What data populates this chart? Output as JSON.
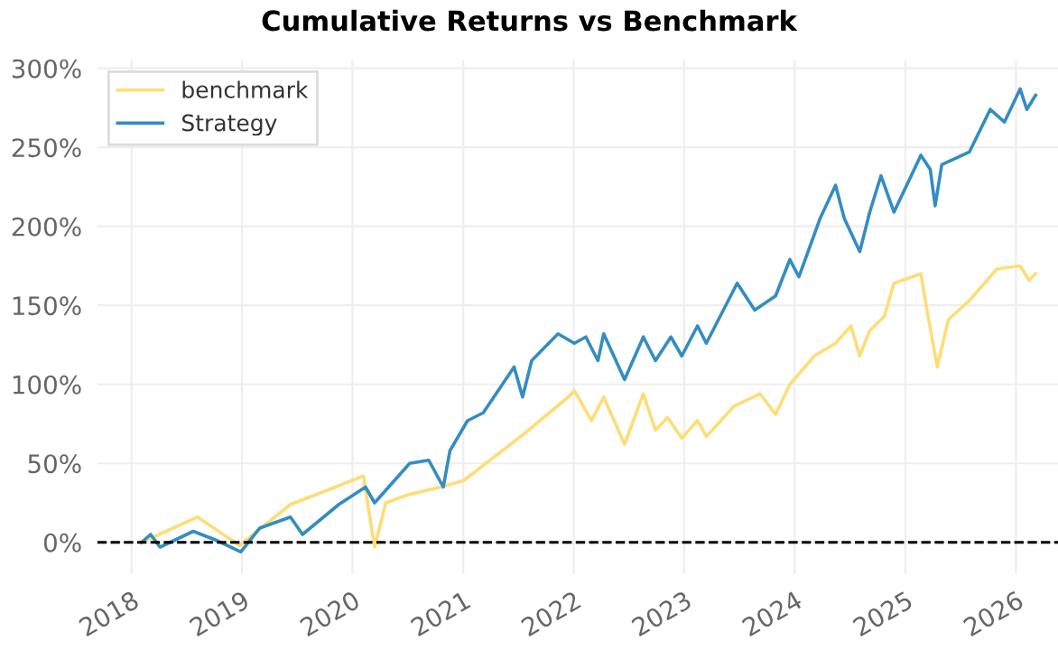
{
  "chart_data": {
    "type": "line",
    "title": "Cumulative Returns vs Benchmark",
    "series": [
      {
        "name": "benchmark",
        "color": "#fedd78",
        "x": [
          "2018-02-03",
          "2018-08-07",
          "2018-12-24",
          "2019-06-10",
          "2019-09-13",
          "2020-02-06",
          "2020-03-14",
          "2020-04-20",
          "2020-07-01",
          "2020-10-19",
          "2021-01-01",
          "2021-04-20",
          "2021-07-23",
          "2021-12-14",
          "2022-01-03",
          "2022-03-01",
          "2022-04-10",
          "2022-06-18",
          "2022-08-19",
          "2022-09-28",
          "2022-11-07",
          "2022-12-24",
          "2023-02-14",
          "2023-03-15",
          "2023-06-14",
          "2023-09-09",
          "2023-10-30",
          "2023-12-16",
          "2024-03-06",
          "2024-05-15",
          "2024-07-05",
          "2024-08-03",
          "2024-09-05",
          "2024-10-23",
          "2024-11-24",
          "2025-02-21",
          "2025-03-15",
          "2025-04-16",
          "2025-05-23",
          "2025-07-31",
          "2025-10-30",
          "2026-01-15",
          "2026-02-13",
          "2026-03-07"
        ],
        "values": [
          0,
          16,
          -2,
          24,
          31,
          42,
          -3,
          25,
          30,
          35,
          39,
          55,
          69,
          92,
          96,
          77,
          92,
          62,
          94,
          71,
          79,
          66,
          77,
          67,
          86,
          94,
          81,
          100,
          118,
          126,
          137,
          118,
          134,
          143,
          164,
          170,
          145,
          111,
          141,
          153,
          173,
          175,
          166,
          170
        ]
      },
      {
        "name": "Strategy",
        "color": "#348dc1",
        "x": [
          "2018-02-03",
          "2018-03-05",
          "2018-04-05",
          "2018-07-24",
          "2018-10-12",
          "2018-12-28",
          "2019-02-28",
          "2019-06-10",
          "2019-07-20",
          "2019-11-17",
          "2020-02-13",
          "2020-03-14",
          "2020-07-08",
          "2020-09-09",
          "2020-10-27",
          "2020-11-18",
          "2021-01-15",
          "2021-03-08",
          "2021-06-18",
          "2021-07-16",
          "2021-08-15",
          "2021-11-10",
          "2022-01-03",
          "2022-02-10",
          "2022-03-22",
          "2022-04-10",
          "2022-06-18",
          "2022-08-19",
          "2022-09-28",
          "2022-11-18",
          "2022-12-24",
          "2023-02-14",
          "2023-03-15",
          "2023-06-25",
          "2023-08-22",
          "2023-10-30",
          "2023-12-16",
          "2024-01-15",
          "2024-03-25",
          "2024-05-15",
          "2024-06-13",
          "2024-08-03",
          "2024-09-05",
          "2024-10-12",
          "2024-11-24",
          "2025-02-21",
          "2025-03-24",
          "2025-04-09",
          "2025-05-01",
          "2025-07-31",
          "2025-10-08",
          "2025-11-24",
          "2026-01-15",
          "2026-02-06",
          "2026-03-07"
        ],
        "values": [
          0,
          5,
          -3,
          7,
          1,
          -6,
          9,
          16,
          5,
          24,
          35,
          25,
          50,
          52,
          35,
          58,
          77,
          82,
          111,
          92,
          115,
          132,
          126,
          130,
          115,
          132,
          103,
          130,
          115,
          130,
          118,
          137,
          126,
          164,
          147,
          156,
          179,
          168,
          205,
          226,
          205,
          184,
          209,
          232,
          209,
          245,
          236,
          213,
          239,
          247,
          274,
          266,
          287,
          274,
          283
        ]
      }
    ],
    "xlim": [
      "2017-09-10",
      "2026-05-20"
    ],
    "xticks": [
      {
        "value": "2018-01-01",
        "label": "2018"
      },
      {
        "value": "2019-01-01",
        "label": "2019"
      },
      {
        "value": "2020-01-01",
        "label": "2020"
      },
      {
        "value": "2021-01-01",
        "label": "2021"
      },
      {
        "value": "2022-01-01",
        "label": "2022"
      },
      {
        "value": "2023-01-01",
        "label": "2023"
      },
      {
        "value": "2024-01-01",
        "label": "2024"
      },
      {
        "value": "2025-01-01",
        "label": "2025"
      },
      {
        "value": "2026-01-01",
        "label": "2026"
      }
    ],
    "ylim": [
      -20,
      305
    ],
    "yticks": [
      {
        "value": 0,
        "label": "0%"
      },
      {
        "value": 50,
        "label": "50%"
      },
      {
        "value": 100,
        "label": "100%"
      },
      {
        "value": 150,
        "label": "150%"
      },
      {
        "value": 200,
        "label": "200%"
      },
      {
        "value": 250,
        "label": "250%"
      },
      {
        "value": 300,
        "label": "300%"
      }
    ],
    "ref_lines": [
      {
        "axis": "y",
        "value": 0,
        "color": "#000000",
        "line_style": "dashed"
      }
    ],
    "grid": true,
    "legend": "top left",
    "marker": "none",
    "line_style": "solid"
  }
}
